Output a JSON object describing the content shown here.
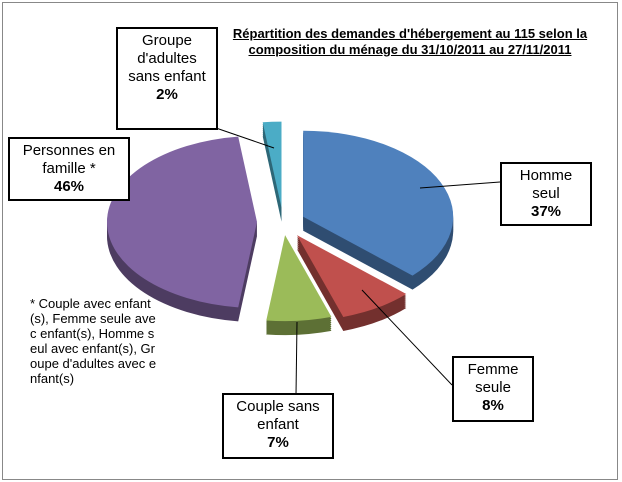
{
  "chart_data": {
    "type": "pie",
    "title": "Répartition des demandes d'hébergement au 115 selon la composition du ménage du 31/10/2011 au 27/11/2011",
    "categories": [
      "Homme seul",
      "Femme seule",
      "Couple sans enfant",
      "Personnes en famille *",
      "Groupe d'adultes sans enfant"
    ],
    "values": [
      37,
      8,
      7,
      46,
      2
    ],
    "value_labels": [
      "37%",
      "8%",
      "7%",
      "46%",
      "2%"
    ],
    "colors": [
      "#4f81bd",
      "#c0504d",
      "#9bbb59",
      "#8064a2",
      "#4bacc6"
    ],
    "note": "* Couple avec enfant(s), Femme seule avec enfant(s), Homme seul avec enfant(s), Groupe d'adultes avec enfant(s)"
  }
}
